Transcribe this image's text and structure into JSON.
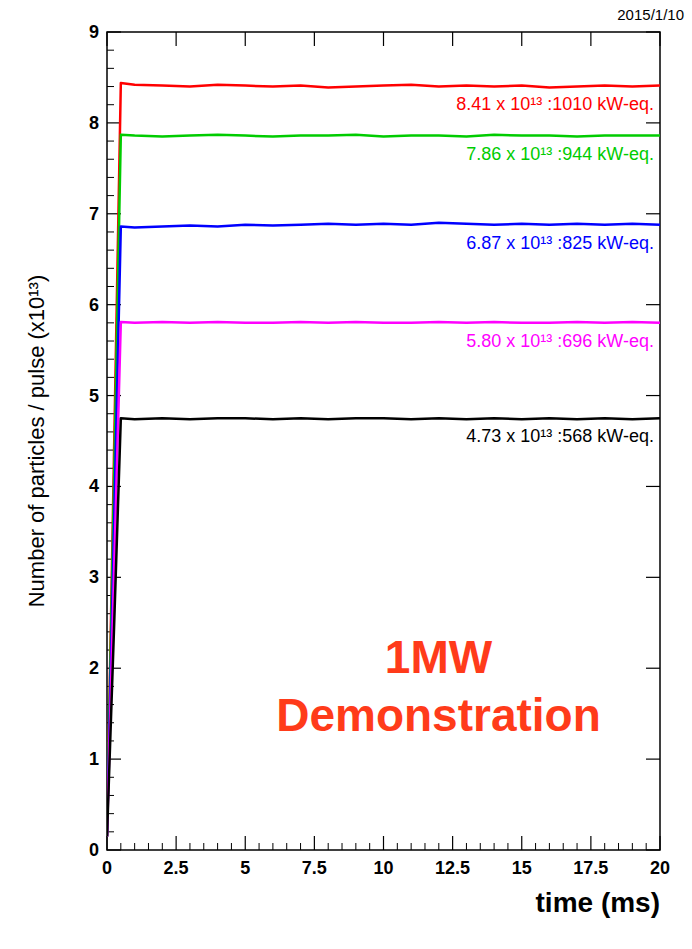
{
  "chart_data": {
    "type": "line",
    "x_label": "time (ms)",
    "y_label": "Number of particles / pulse (x10¹³)",
    "annotations": [
      "2015/1/10",
      "1MW",
      "Demonstration"
    ],
    "x": [
      0,
      0.25,
      0.5,
      1,
      2,
      3,
      4,
      5,
      6,
      7,
      8,
      9,
      10,
      11,
      12,
      13,
      14,
      15,
      16,
      17,
      18,
      19,
      20
    ],
    "series": [
      {
        "name": "8.41 x 10¹³ :1010 kW-eq.",
        "color": "#ff0000",
        "values": [
          0.15,
          4.3,
          8.44,
          8.42,
          8.41,
          8.4,
          8.42,
          8.41,
          8.4,
          8.41,
          8.39,
          8.4,
          8.41,
          8.42,
          8.4,
          8.41,
          8.4,
          8.41,
          8.39,
          8.4,
          8.41,
          8.4,
          8.41
        ]
      },
      {
        "name": "7.86 x 10¹³ :944 kW-eq.",
        "color": "#00cc00",
        "values": [
          0.15,
          4.0,
          7.87,
          7.86,
          7.85,
          7.86,
          7.87,
          7.86,
          7.85,
          7.86,
          7.86,
          7.87,
          7.85,
          7.86,
          7.86,
          7.85,
          7.87,
          7.86,
          7.86,
          7.85,
          7.86,
          7.86,
          7.86
        ]
      },
      {
        "name": "6.87 x 10¹³ :825 kW-eq.",
        "color": "#0000ff",
        "values": [
          0.15,
          3.5,
          6.86,
          6.85,
          6.86,
          6.87,
          6.86,
          6.88,
          6.87,
          6.88,
          6.89,
          6.88,
          6.89,
          6.88,
          6.9,
          6.89,
          6.88,
          6.89,
          6.88,
          6.89,
          6.88,
          6.89,
          6.88
        ]
      },
      {
        "name": "5.80 x 10¹³ :696 kW-eq.",
        "color": "#ff00ff",
        "values": [
          0.15,
          3.0,
          5.81,
          5.8,
          5.81,
          5.8,
          5.81,
          5.8,
          5.8,
          5.81,
          5.8,
          5.81,
          5.8,
          5.8,
          5.81,
          5.8,
          5.81,
          5.8,
          5.8,
          5.81,
          5.8,
          5.81,
          5.8
        ]
      },
      {
        "name": "4.73 x 10¹³ :568 kW-eq.",
        "color": "#000000",
        "values": [
          0.15,
          2.4,
          4.75,
          4.74,
          4.75,
          4.74,
          4.75,
          4.75,
          4.74,
          4.75,
          4.74,
          4.75,
          4.75,
          4.74,
          4.75,
          4.74,
          4.75,
          4.74,
          4.75,
          4.74,
          4.75,
          4.74,
          4.75
        ]
      }
    ],
    "xlim": [
      0,
      20
    ],
    "ylim": [
      0,
      9
    ],
    "xticks": [
      0,
      2.5,
      5,
      7.5,
      10,
      12.5,
      15,
      17.5,
      20
    ],
    "yticks": [
      0,
      1,
      2,
      3,
      4,
      5,
      6,
      7,
      8,
      9
    ],
    "grid": false
  }
}
